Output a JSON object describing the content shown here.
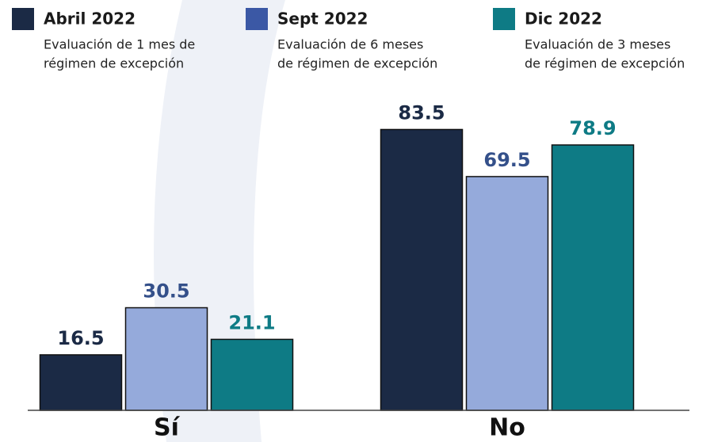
{
  "chart_data": {
    "type": "bar",
    "categories": [
      "Sí",
      "No"
    ],
    "series": [
      {
        "name": "Abril 2022",
        "description": [
          "Evaluación de 1 mes de",
          "régimen de excepción"
        ],
        "color": "#1b2a45",
        "legend_color": "#1b2a45",
        "label_color": "#1b2a45",
        "values": [
          16.5,
          83.5
        ]
      },
      {
        "name": "Sept 2022",
        "description": [
          "Evaluación de 6 meses",
          "de régimen de excepción"
        ],
        "color": "#95aadb",
        "legend_color": "#3b58a5",
        "label_color": "#34508a",
        "values": [
          30.5,
          69.5
        ]
      },
      {
        "name": "Dic 2022",
        "description": [
          "Evaluación de 3 meses",
          "de régimen de excepción"
        ],
        "color": "#0e7b85",
        "legend_color": "#0e7b85",
        "label_color": "#0e7b85",
        "values": [
          21.1,
          78.9
        ]
      }
    ],
    "ylim": [
      0,
      122
    ]
  }
}
